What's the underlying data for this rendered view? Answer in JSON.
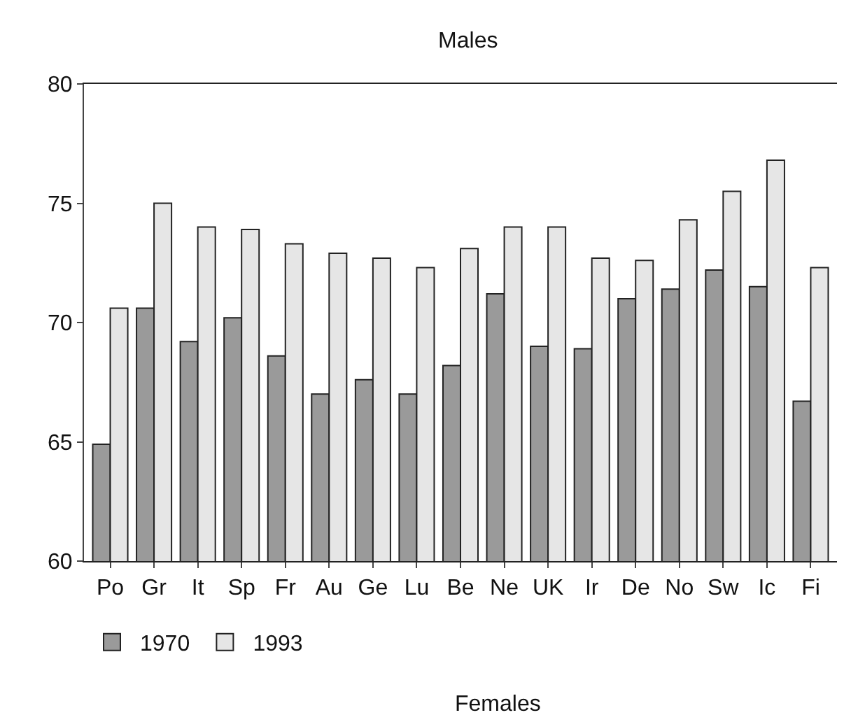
{
  "chart_data": {
    "type": "bar",
    "title": "Males",
    "categories": [
      "Po",
      "Gr",
      "It",
      "Sp",
      "Fr",
      "Au",
      "Ge",
      "Lu",
      "Be",
      "Ne",
      "UK",
      "Ir",
      "De",
      "No",
      "Sw",
      "Ic",
      "Fi"
    ],
    "series": [
      {
        "name": "1970",
        "color": "#9a9a9a",
        "values": [
          64.9,
          70.6,
          69.2,
          70.2,
          68.6,
          67.0,
          67.6,
          67.0,
          68.2,
          71.2,
          69.0,
          68.9,
          71.0,
          71.4,
          72.2,
          71.5,
          66.7
        ]
      },
      {
        "name": "1993",
        "color": "#e6e6e6",
        "values": [
          70.6,
          75.0,
          74.0,
          73.9,
          73.3,
          72.9,
          72.7,
          72.3,
          73.1,
          74.0,
          74.0,
          72.7,
          72.6,
          74.3,
          75.5,
          76.8,
          72.3
        ]
      }
    ],
    "ylim": [
      60,
      80
    ],
    "yticks": [
      60,
      65,
      70,
      75,
      80
    ],
    "grid": false,
    "legend": "bottom left",
    "annotations": [
      "Females"
    ]
  }
}
